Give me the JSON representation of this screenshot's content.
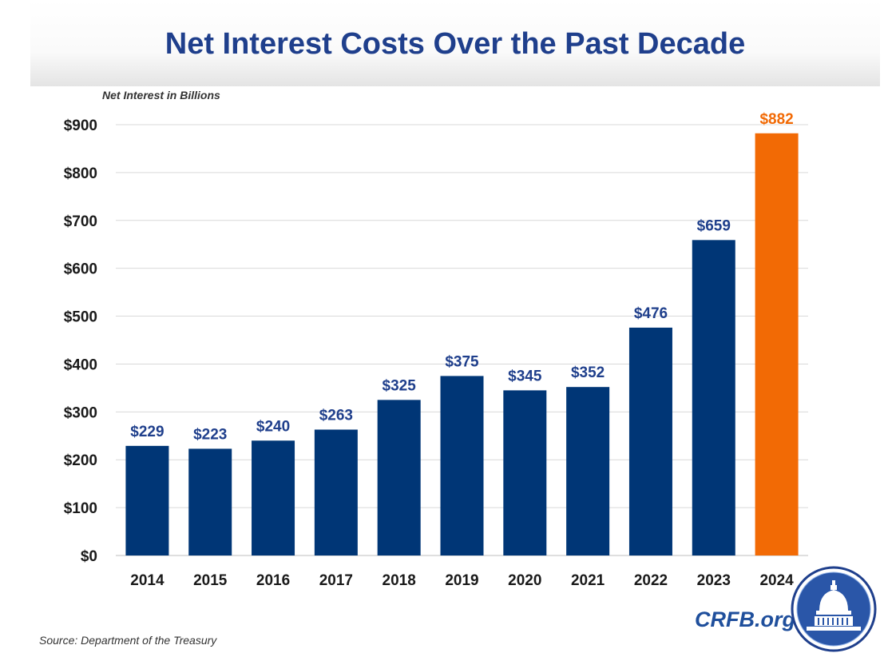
{
  "title": "Net Interest Costs Over the Past Decade",
  "source": "Source: Department of the Treasury",
  "brand": "CRFB.org",
  "colors": {
    "title": "#1f3f8c",
    "bar": "#003676",
    "highlight_bar": "#f26a05",
    "label": "#1f3f8c",
    "highlight_label": "#f26a05",
    "grid": "#d9d9d9",
    "brand": "#1f4f9c"
  },
  "chart_data": {
    "type": "bar",
    "title": "Net Interest Costs Over the Past Decade",
    "ylabel": "Net Interest in Billions",
    "xlabel": "",
    "categories": [
      "2014",
      "2015",
      "2016",
      "2017",
      "2018",
      "2019",
      "2020",
      "2021",
      "2022",
      "2023",
      "2024"
    ],
    "values": [
      229,
      223,
      240,
      263,
      325,
      375,
      345,
      352,
      476,
      659,
      882
    ],
    "value_labels": [
      "$229",
      "$223",
      "$240",
      "$263",
      "$325",
      "$375",
      "$345",
      "$352",
      "$476",
      "$659",
      "$882"
    ],
    "highlight_index": 10,
    "ylim": [
      0,
      900
    ],
    "yticks": [
      0,
      100,
      200,
      300,
      400,
      500,
      600,
      700,
      800,
      900
    ],
    "ytick_labels": [
      "$0",
      "$100",
      "$200",
      "$300",
      "$400",
      "$500",
      "$600",
      "$700",
      "$800",
      "$900"
    ],
    "grid": true,
    "legend": "none"
  }
}
